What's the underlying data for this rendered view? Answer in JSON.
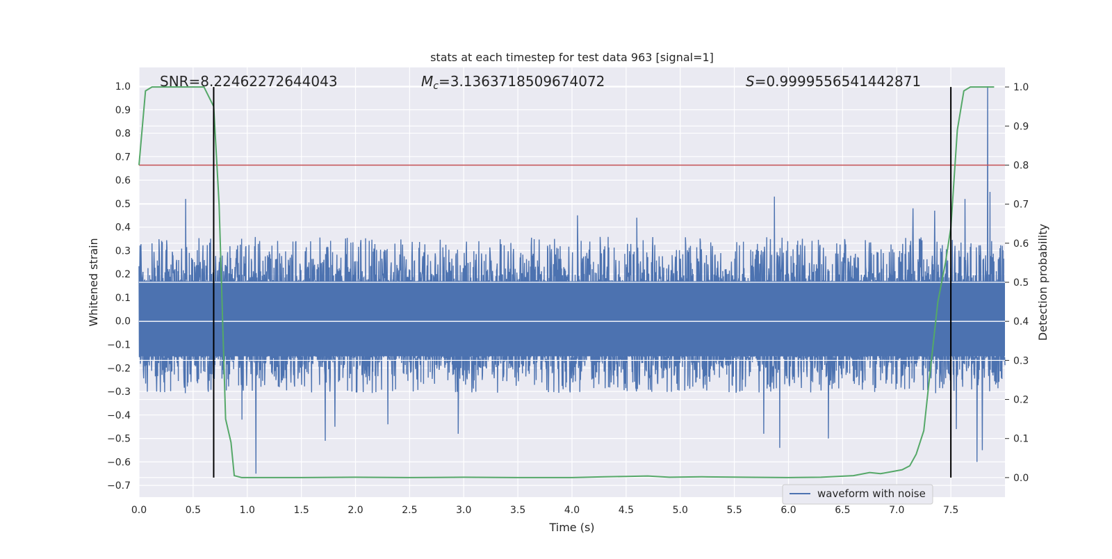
{
  "chart_data": {
    "type": "line",
    "title": "stats at each timestep for test data 963 [signal=1]",
    "xlabel": "Time (s)",
    "ylabel": "Whitened strain",
    "ylabel_right": "Detection probability",
    "xlim": [
      0.0,
      8.0
    ],
    "ylim": [
      -0.75,
      1.08
    ],
    "ylim_right": [
      -0.05,
      1.05
    ],
    "x_ticks": [
      "0.0",
      "0.5",
      "1.0",
      "1.5",
      "2.0",
      "2.5",
      "3.0",
      "3.5",
      "4.0",
      "4.5",
      "5.0",
      "5.5",
      "6.0",
      "6.5",
      "7.0",
      "7.5"
    ],
    "y_ticks": [
      "1.0",
      "0.9",
      "0.8",
      "0.7",
      "0.6",
      "0.5",
      "0.4",
      "0.3",
      "0.2",
      "0.1",
      "0.0",
      "−0.1",
      "−0.2",
      "−0.3",
      "−0.4",
      "−0.5",
      "−0.6",
      "−0.7"
    ],
    "y_ticks_right": [
      "1.0",
      "0.9",
      "0.8",
      "0.7",
      "0.6",
      "0.5",
      "0.4",
      "0.3",
      "0.2",
      "0.1",
      "0.0"
    ],
    "grid": true,
    "background": "#eaeaf2",
    "annotations": {
      "snr": "SNR=8.22462272644043",
      "mc_symbol": "M",
      "mc_sub": "c",
      "mc_value": "=3.1363718509674072",
      "s_symbol": "S",
      "s_value": "=0.9999556541442871"
    },
    "legend": {
      "position": "bottom-right",
      "label": "waveform with noise"
    },
    "threshold_line": {
      "y_right": 0.8,
      "color": "#c44e52"
    },
    "vertical_lines": {
      "x": [
        0.69,
        7.5
      ],
      "y_range_right": [
        0.0,
        1.0
      ],
      "color": "#000000"
    },
    "waveform": {
      "name": "waveform with noise",
      "color": "#4c72b0",
      "x_range": [
        0.0,
        8.0
      ],
      "core_range": [
        -0.15,
        0.17
      ],
      "typical_peak_range": [
        -0.3,
        0.35
      ],
      "max": 1.0,
      "min": -0.65,
      "peaks": [
        {
          "x": 0.43,
          "y": 0.52
        },
        {
          "x": 1.08,
          "y": -0.65
        },
        {
          "x": 0.95,
          "y": -0.42
        },
        {
          "x": 1.72,
          "y": -0.51
        },
        {
          "x": 1.81,
          "y": -0.45
        },
        {
          "x": 2.3,
          "y": -0.44
        },
        {
          "x": 2.95,
          "y": -0.48
        },
        {
          "x": 5.87,
          "y": 0.53
        },
        {
          "x": 5.77,
          "y": -0.48
        },
        {
          "x": 5.92,
          "y": -0.54
        },
        {
          "x": 6.37,
          "y": -0.5
        },
        {
          "x": 7.55,
          "y": -0.46
        },
        {
          "x": 7.63,
          "y": 0.52
        },
        {
          "x": 7.74,
          "y": -0.6
        },
        {
          "x": 7.79,
          "y": -0.55
        },
        {
          "x": 7.84,
          "y": 1.0
        },
        {
          "x": 7.86,
          "y": 0.55
        },
        {
          "x": 7.15,
          "y": 0.48
        },
        {
          "x": 7.35,
          "y": 0.47
        },
        {
          "x": 4.05,
          "y": 0.45
        },
        {
          "x": 4.6,
          "y": 0.44
        }
      ]
    },
    "detection_probability": {
      "name": "detection probability",
      "color": "#55a868",
      "x": [
        0.0,
        0.06,
        0.12,
        0.2,
        0.3,
        0.4,
        0.5,
        0.6,
        0.69,
        0.74,
        0.8,
        0.85,
        0.88,
        0.95,
        1.1,
        1.5,
        2.0,
        2.5,
        3.0,
        3.5,
        4.0,
        4.3,
        4.5,
        4.7,
        4.9,
        5.2,
        5.6,
        6.0,
        6.3,
        6.6,
        6.75,
        6.85,
        6.95,
        7.05,
        7.12,
        7.18,
        7.25,
        7.32,
        7.38,
        7.45,
        7.5,
        7.56,
        7.62,
        7.68,
        7.75,
        7.9
      ],
      "y": [
        0.8,
        0.99,
        1.0,
        1.0,
        1.0,
        1.0,
        1.0,
        1.0,
        0.95,
        0.7,
        0.15,
        0.09,
        0.005,
        0.0,
        0.0,
        0.0,
        0.001,
        0.0,
        0.001,
        0.0,
        0.0,
        0.002,
        0.003,
        0.004,
        0.001,
        0.002,
        0.001,
        0.0,
        0.001,
        0.005,
        0.013,
        0.01,
        0.015,
        0.02,
        0.03,
        0.06,
        0.12,
        0.3,
        0.45,
        0.55,
        0.64,
        0.89,
        0.99,
        1.0,
        1.0,
        1.0
      ]
    }
  }
}
